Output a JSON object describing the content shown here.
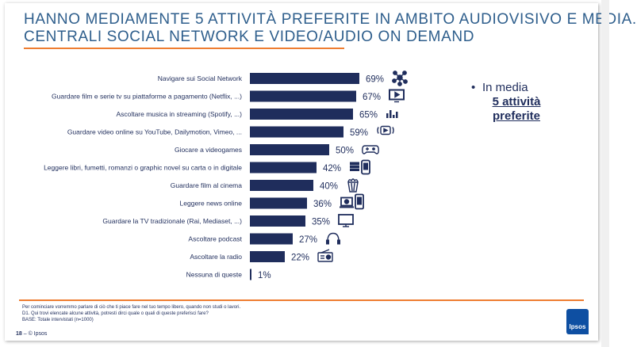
{
  "title": {
    "line1": "HANNO MEDIAMENTE 5 ATTIVITÀ PREFERITE IN AMBITO AUDIOVISIVO E MEDIA.",
    "line2": "CENTRALI SOCIAL NETWORK E VIDEO/AUDIO ON DEMAND"
  },
  "side_note": {
    "bullet": "•",
    "label": "In media",
    "emph_line1": "5 attività",
    "emph_line2": "preferite"
  },
  "footnote": {
    "line1": "Per cominciare vorremmo parlare di ciò che ti piace fare nel tuo tempo libero, quando non studi o lavori.",
    "line2": "D1. Qui trovi elencate alcune attività, potresti dirci quale o quali di queste preferisci fare?",
    "line3": "BASE: Totale intervistati (n=1000)"
  },
  "footer": {
    "page": "18",
    "sep": " – © Ipsos"
  },
  "logo": "Ipsos",
  "colors": {
    "bar": "#1f2d5c",
    "title": "#2e5e8c",
    "accent": "#ee7d31",
    "logo": "#0e4fa2"
  },
  "chart_data": {
    "type": "bar",
    "orientation": "horizontal",
    "categories": [
      "Navigare sui Social Network",
      "Guardare film e serie tv su piattaforme a pagamento (Netflix, ...)",
      "Ascoltare musica in streaming (Spotify, ...)",
      "Guardare video online su YouTube, Dailymotion, Vimeo, ...",
      "Giocare a videogames",
      "Leggere libri, fumetti, romanzi o graphic novel su carta o in digitale",
      "Guardare film al cinema",
      "Leggere news online",
      "Guardare la TV tradizionale (Rai, Mediaset, ...)",
      "Ascoltare podcast",
      "Ascoltare la radio",
      "Nessuna di queste"
    ],
    "values": [
      69,
      67,
      65,
      59,
      50,
      42,
      40,
      36,
      35,
      27,
      22,
      1
    ],
    "value_labels": [
      "69%",
      "67%",
      "65%",
      "59%",
      "50%",
      "42%",
      "40%",
      "36%",
      "35%",
      "27%",
      "22%",
      "1%"
    ],
    "icons": [
      "network-icon",
      "tv-play-icon",
      "equalizer-icon",
      "video-stream-icon",
      "gamepad-icon",
      "books-tablet-icon",
      "popcorn-icon",
      "laptop-phone-icon",
      "monitor-icon",
      "headphones-icon",
      "radio-icon",
      ""
    ],
    "xlim": [
      0,
      100
    ],
    "grid": false,
    "legend": "none"
  }
}
